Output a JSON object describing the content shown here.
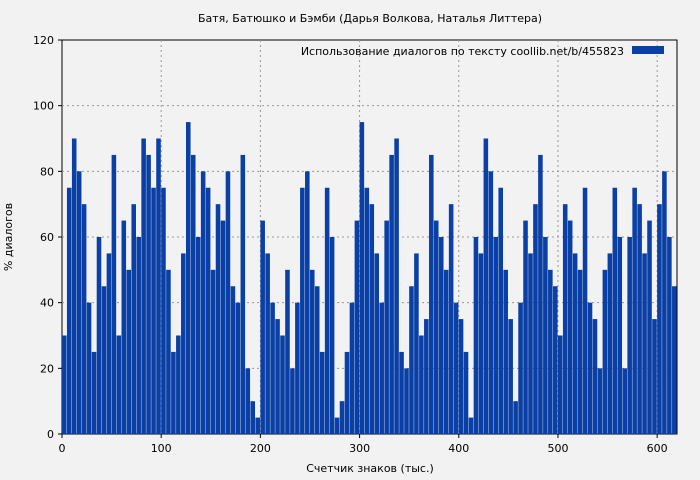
{
  "chart_data": {
    "type": "bar",
    "title": "Батя, Батюшко и Бэмби (Дарья Волкова, Наталья Литтера)",
    "xlabel": "Счетчик знаков (тыс.)",
    "ylabel": "% диалогов",
    "xlim": [
      0,
      620
    ],
    "ylim": [
      0,
      120
    ],
    "x_ticks": [
      "0",
      "100",
      "200",
      "300",
      "400",
      "500",
      "600"
    ],
    "y_ticks": [
      "0",
      "20",
      "40",
      "60",
      "80",
      "100",
      "120"
    ],
    "grid": true,
    "legend_position": "top-right",
    "bar_color": "#0a3fa5",
    "series": [
      {
        "name": "Использование диалогов по тексту  coollib.net/b/455823",
        "x": [
          0,
          5,
          10,
          15,
          20,
          25,
          30,
          35,
          40,
          45,
          50,
          55,
          60,
          65,
          70,
          75,
          80,
          85,
          90,
          95,
          100,
          105,
          110,
          115,
          120,
          125,
          130,
          135,
          140,
          145,
          150,
          155,
          160,
          165,
          170,
          175,
          180,
          185,
          190,
          195,
          200,
          205,
          210,
          215,
          220,
          225,
          230,
          235,
          240,
          245,
          250,
          255,
          260,
          265,
          270,
          275,
          280,
          285,
          290,
          295,
          300,
          305,
          310,
          315,
          320,
          325,
          330,
          335,
          340,
          345,
          350,
          355,
          360,
          365,
          370,
          375,
          380,
          385,
          390,
          395,
          400,
          405,
          410,
          415,
          420,
          425,
          430,
          435,
          440,
          445,
          450,
          455,
          460,
          465,
          470,
          475,
          480,
          485,
          490,
          495,
          500,
          505,
          510,
          515,
          520,
          525,
          530,
          535,
          540,
          545,
          550,
          555,
          560,
          565,
          570,
          575,
          580,
          585,
          590,
          595,
          600,
          605,
          610,
          615
        ],
        "values": [
          30,
          75,
          90,
          80,
          70,
          40,
          25,
          60,
          45,
          55,
          85,
          30,
          65,
          50,
          70,
          60,
          90,
          85,
          75,
          90,
          75,
          50,
          25,
          30,
          55,
          95,
          85,
          60,
          80,
          75,
          50,
          70,
          65,
          80,
          45,
          40,
          85,
          20,
          10,
          5,
          65,
          55,
          40,
          35,
          30,
          50,
          20,
          40,
          75,
          80,
          50,
          45,
          25,
          75,
          60,
          5,
          10,
          25,
          40,
          65,
          95,
          75,
          70,
          55,
          40,
          65,
          85,
          90,
          25,
          20,
          45,
          55,
          30,
          35,
          85,
          65,
          60,
          50,
          70,
          40,
          35,
          25,
          5,
          60,
          55,
          90,
          80,
          60,
          75,
          50,
          35,
          10,
          40,
          65,
          55,
          70,
          85,
          60,
          50,
          45,
          30,
          70,
          65,
          55,
          50,
          75,
          40,
          35,
          20,
          50,
          55,
          75,
          60,
          20,
          60,
          75,
          70,
          55,
          65,
          35,
          70,
          80,
          60,
          45
        ]
      }
    ]
  }
}
